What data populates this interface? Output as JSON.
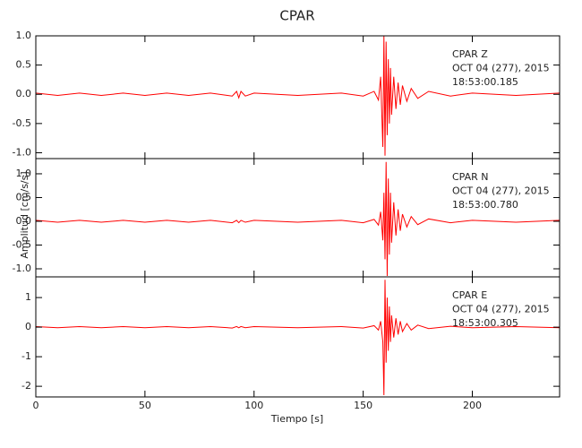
{
  "title": "CPAR",
  "x_label": "Tiempo [s]",
  "y_label": "Amplitud [cm/s/s]",
  "chart_data": [
    {
      "type": "line",
      "color": "#ff0000",
      "annotations": [
        "CPAR   Z",
        "OCT 04 (277), 2015",
        "18:53:00.185"
      ],
      "x": [
        0,
        10,
        20,
        30,
        40,
        50,
        60,
        70,
        80,
        90,
        92,
        93,
        94,
        96,
        100,
        120,
        140,
        150,
        155,
        157,
        158,
        159,
        159.5,
        160,
        160.5,
        161,
        161.5,
        162,
        162.5,
        163,
        164,
        165,
        166,
        167,
        168,
        170,
        172,
        175,
        180,
        190,
        200,
        220,
        240
      ],
      "values": [
        0.02,
        -0.02,
        0.02,
        -0.02,
        0.02,
        -0.02,
        0.02,
        -0.02,
        0.02,
        -0.03,
        0.05,
        -0.06,
        0.05,
        -0.03,
        0.02,
        -0.02,
        0.02,
        -0.03,
        0.05,
        -0.1,
        0.3,
        -0.9,
        1.0,
        -1.05,
        0.9,
        -0.7,
        0.6,
        -0.5,
        0.45,
        -0.35,
        0.3,
        -0.25,
        0.2,
        -0.18,
        0.15,
        -0.12,
        0.1,
        -0.07,
        0.05,
        -0.03,
        0.02,
        -0.02,
        0.02
      ],
      "xlim": [
        0,
        240
      ],
      "xticks": [
        0,
        50,
        100,
        150,
        200
      ],
      "ylim": [
        -1.1,
        1.0
      ],
      "yticks": [
        {
          "value": 1.0,
          "label": "1.0"
        },
        0.5,
        {
          "value": 0,
          "label": "0.0"
        },
        -0.5,
        {
          "value": -1.0,
          "label": "-1.0"
        }
      ]
    },
    {
      "type": "line",
      "color": "#ff0000",
      "annotations": [
        "CPAR   N",
        "OCT 04 (277), 2015",
        "18:53:00.780"
      ],
      "x": [
        0,
        10,
        20,
        30,
        40,
        50,
        60,
        70,
        80,
        90,
        92,
        93,
        94,
        96,
        100,
        120,
        140,
        150,
        155,
        157,
        158,
        159,
        159.5,
        160,
        160.5,
        161,
        161.5,
        162,
        162.5,
        163,
        164,
        165,
        166,
        167,
        168,
        170,
        172,
        175,
        180,
        190,
        200,
        220,
        240
      ],
      "values": [
        0.02,
        -0.02,
        0.02,
        -0.02,
        0.02,
        -0.02,
        0.02,
        -0.02,
        0.02,
        -0.03,
        0.02,
        -0.03,
        0.02,
        -0.02,
        0.02,
        -0.02,
        0.02,
        -0.03,
        0.04,
        -0.08,
        0.2,
        -0.4,
        0.6,
        -0.8,
        1.25,
        -1.15,
        0.9,
        -0.7,
        0.6,
        -0.45,
        0.4,
        -0.3,
        0.25,
        -0.2,
        0.15,
        -0.12,
        0.1,
        -0.07,
        0.05,
        -0.03,
        0.02,
        -0.02,
        0.02
      ],
      "xlim": [
        0,
        240
      ],
      "xticks": [
        0,
        50,
        100,
        150,
        200
      ],
      "ylim": [
        -1.17,
        1.32
      ],
      "yticks": [
        {
          "value": 1.0,
          "label": "1.0"
        },
        0.5,
        {
          "value": 0,
          "label": "0.0"
        },
        -0.5,
        {
          "value": -1.0,
          "label": "-1.0"
        }
      ]
    },
    {
      "type": "line",
      "color": "#ff0000",
      "annotations": [
        "CPAR   E",
        "OCT 04 (277), 2015",
        "18:53:00.305"
      ],
      "x": [
        0,
        10,
        20,
        30,
        40,
        50,
        60,
        70,
        80,
        90,
        92,
        93,
        94,
        96,
        100,
        120,
        140,
        150,
        155,
        157,
        158,
        159,
        159.5,
        160,
        160.5,
        161,
        161.5,
        162,
        162.5,
        163,
        164,
        165,
        166,
        167,
        168,
        170,
        172,
        175,
        180,
        190,
        200,
        220,
        240
      ],
      "values": [
        0.02,
        -0.02,
        0.02,
        -0.02,
        0.02,
        -0.02,
        0.02,
        -0.02,
        0.02,
        -0.03,
        0.02,
        -0.02,
        0.02,
        -0.02,
        0.02,
        -0.02,
        0.02,
        -0.03,
        0.05,
        -0.1,
        0.2,
        -0.5,
        -2.3,
        1.6,
        -1.2,
        1.0,
        -0.8,
        0.7,
        -0.5,
        0.4,
        -0.35,
        0.3,
        -0.25,
        0.2,
        -0.15,
        0.12,
        -0.1,
        0.07,
        -0.05,
        0.03,
        -0.02,
        0.02,
        -0.02
      ],
      "xlim": [
        0,
        240
      ],
      "xticks": [
        0,
        50,
        100,
        150,
        200
      ],
      "x_tick_labels": true,
      "ylim": [
        -2.36,
        1.7
      ],
      "yticks": [
        1,
        0,
        -1,
        -2
      ]
    }
  ]
}
